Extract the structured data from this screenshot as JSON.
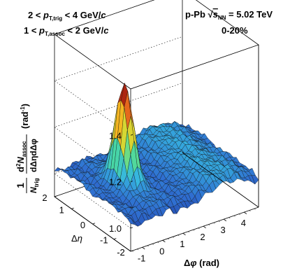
{
  "chart_data": {
    "type": "surface",
    "title": "",
    "annotations": {
      "ptrig": "2 < p_T,trig < 4 GeV/c",
      "passoc": "1 < p_T,assoc < 2 GeV/c",
      "system": "p-Pb √s_NN = 5.02 TeV",
      "centrality": "0-20%"
    },
    "xlabel": "Δφ (rad)",
    "ylabel": "Δη",
    "zlabel": "(1/N_trig) d²N_assoc/dΔηdΔφ (rad⁻¹)",
    "x_ticks": [
      "-1",
      "0",
      "1",
      "2",
      "3",
      "4"
    ],
    "y_ticks": [
      "-2",
      "-1",
      "0",
      "1",
      "2"
    ],
    "z_ticks": [
      "1.0",
      "1.2",
      "1.4"
    ],
    "xlim": [
      -1.57,
      4.71
    ],
    "ylim": [
      -1.8,
      1.8
    ],
    "zlim": [
      0.9,
      1.6
    ],
    "baseline": 1.02,
    "near_side_peak": {
      "dphi": 0.0,
      "deta": 0.0,
      "height": 1.44,
      "sigma_dphi": 0.28,
      "sigma_deta": 0.35
    },
    "near_side_ridge": {
      "dphi": 0.0,
      "height": 0.02,
      "sigma_dphi": 0.55
    },
    "away_side_ridge": {
      "dphi": 3.14,
      "height": 0.06,
      "sigma_dphi": 0.95
    },
    "colormap": [
      "#1b2a8f",
      "#2f6fd1",
      "#36b6e0",
      "#49d8a2",
      "#c9e63b",
      "#f5b521",
      "#e0521b",
      "#8e0a0a"
    ]
  }
}
